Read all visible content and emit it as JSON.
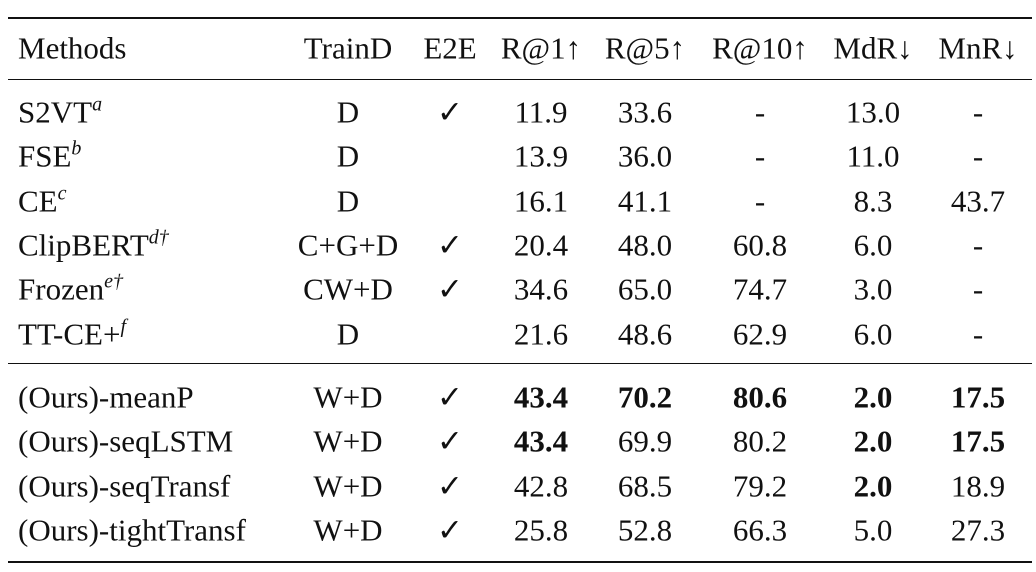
{
  "table": {
    "header": [
      "Methods",
      "TrainD",
      "E2E",
      "R@1↑",
      "R@5↑",
      "R@10↑",
      "MdR↓",
      "MnR↓"
    ],
    "groups": [
      [
        {
          "method": "S2VT",
          "sup": "a",
          "cells": [
            "D",
            "✓",
            "11.9",
            "33.6",
            "-",
            "13.0",
            "-"
          ],
          "bold": [
            false,
            false,
            false,
            false,
            false,
            false,
            false
          ]
        },
        {
          "method": "FSE",
          "sup": "b",
          "cells": [
            "D",
            null,
            "13.9",
            "36.0",
            "-",
            "11.0",
            "-"
          ],
          "bold": [
            false,
            false,
            false,
            false,
            false,
            false,
            false
          ]
        },
        {
          "method": "CE",
          "sup": "c",
          "cells": [
            "D",
            null,
            "16.1",
            "41.1",
            "-",
            "8.3",
            "43.7"
          ],
          "bold": [
            false,
            false,
            false,
            false,
            false,
            false,
            false
          ]
        },
        {
          "method": "ClipBERT",
          "sup": "d†",
          "cells": [
            "C+G+D",
            "✓",
            "20.4",
            "48.0",
            "60.8",
            "6.0",
            "-"
          ],
          "bold": [
            false,
            false,
            false,
            false,
            false,
            false,
            false
          ]
        },
        {
          "method": "Frozen",
          "sup": "e†",
          "cells": [
            "CW+D",
            "✓",
            "34.6",
            "65.0",
            "74.7",
            "3.0",
            "-"
          ],
          "bold": [
            false,
            false,
            false,
            false,
            false,
            false,
            false
          ]
        },
        {
          "method": "TT-CE+",
          "sup": "f",
          "cells": [
            "D",
            null,
            "21.6",
            "48.6",
            "62.9",
            "6.0",
            "-"
          ],
          "bold": [
            false,
            false,
            false,
            false,
            false,
            false,
            false
          ]
        }
      ],
      [
        {
          "method": "(Ours)-meanP",
          "sup": null,
          "cells": [
            "W+D",
            "✓",
            "43.4",
            "70.2",
            "80.6",
            "2.0",
            "17.5"
          ],
          "bold": [
            false,
            false,
            true,
            true,
            true,
            true,
            true
          ]
        },
        {
          "method": "(Ours)-seqLSTM",
          "sup": null,
          "cells": [
            "W+D",
            "✓",
            "43.4",
            "69.9",
            "80.2",
            "2.0",
            "17.5"
          ],
          "bold": [
            false,
            false,
            true,
            false,
            false,
            true,
            true
          ]
        },
        {
          "method": "(Ours)-seqTransf",
          "sup": null,
          "cells": [
            "W+D",
            "✓",
            "42.8",
            "68.5",
            "79.2",
            "2.0",
            "18.9"
          ],
          "bold": [
            false,
            false,
            false,
            false,
            false,
            true,
            false
          ]
        },
        {
          "method": "(Ours)-tightTransf",
          "sup": null,
          "cells": [
            "W+D",
            "✓",
            "25.8",
            "52.8",
            "66.3",
            "5.0",
            "27.3"
          ],
          "bold": [
            false,
            false,
            false,
            false,
            false,
            false,
            false
          ]
        }
      ]
    ]
  }
}
